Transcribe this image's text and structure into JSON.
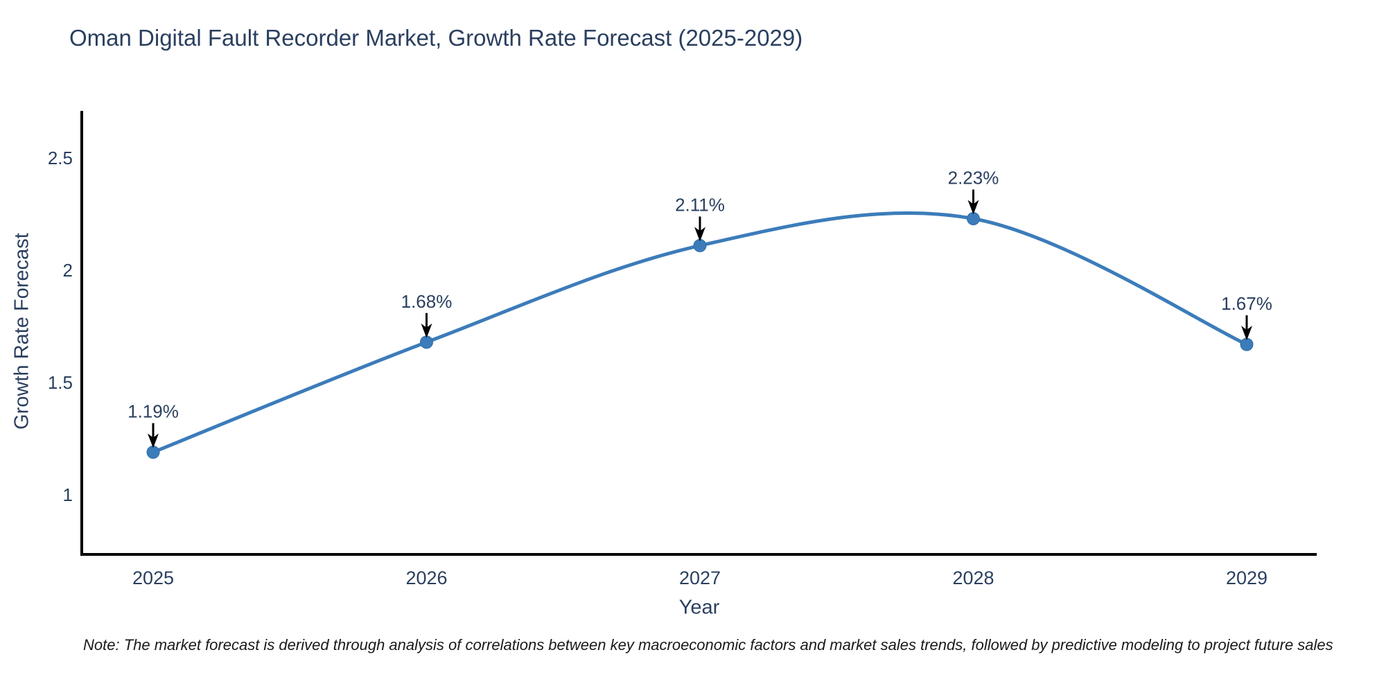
{
  "page": {
    "background_color": "#ffffff"
  },
  "chart_data": {
    "type": "line",
    "title": "Oman Digital Fault Recorder Market, Growth Rate Forecast (2025-2029)",
    "xlabel": "Year",
    "ylabel": "Growth Rate Forecast",
    "categories": [
      "2025",
      "2026",
      "2027",
      "2028",
      "2029"
    ],
    "values": [
      1.19,
      1.68,
      2.11,
      2.23,
      1.67
    ],
    "point_labels": [
      "1.19%",
      "1.68%",
      "2.11%",
      "2.23%",
      "1.67%"
    ],
    "y_ticks": [
      1,
      1.5,
      2,
      2.5
    ],
    "ylim": [
      0.735,
      2.71
    ],
    "line_shape": "spline",
    "grid": false,
    "legend_position": "none",
    "line_color": "#3c7cba",
    "marker_color": "#3c7cba",
    "marker_edge_color": "#2e6da4",
    "axis_color": "#000000",
    "text_color": "#2a3f5f",
    "annotation_arrow_color": "#000000"
  },
  "note": {
    "text": "Note: The market forecast is derived through analysis of correlations between key macroeconomic factors and market sales trends, followed by predictive modeling to project future sales"
  }
}
